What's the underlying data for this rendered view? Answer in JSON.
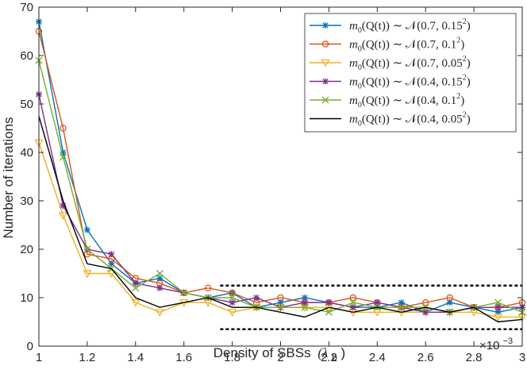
{
  "chart_data": {
    "type": "line",
    "title": "",
    "xlabel": "Density of SBSs",
    "xlabel_symbol": "(λ",
    "xlabel_subscript": "b",
    "xlabel_close": ")",
    "ylabel": "Number of iterations",
    "x_multiplier": "×10",
    "x_multiplier_exp": "−3",
    "xlim": [
      1,
      3
    ],
    "ylim": [
      0,
      70
    ],
    "xticks": [
      1,
      1.2,
      1.4,
      1.6,
      1.8,
      2,
      2.2,
      2.4,
      2.6,
      2.8,
      3
    ],
    "xtick_labels": [
      "1",
      "1.2",
      "1.4",
      "1.6",
      "1.8",
      "2",
      "2.2",
      "2.4",
      "2.6",
      "2.8",
      "3"
    ],
    "yticks": [
      0,
      10,
      20,
      30,
      40,
      50,
      60,
      70
    ],
    "ytick_labels": [
      "0",
      "10",
      "20",
      "30",
      "40",
      "50",
      "60",
      "70"
    ],
    "x": [
      1.0,
      1.1,
      1.2,
      1.3,
      1.4,
      1.5,
      1.6,
      1.7,
      1.8,
      1.9,
      2.0,
      2.1,
      2.2,
      2.3,
      2.4,
      2.5,
      2.6,
      2.7,
      2.8,
      2.9,
      3.0
    ],
    "legend_position": "top-right",
    "series": [
      {
        "name": "m0(Q(t)) ~ N(0.7, 0.15^2)",
        "legend_prefix": "m",
        "legend_sub": "0",
        "legend_mid": "(Q(t)) ∼ 𝒩(0.7, 0.15",
        "legend_sup": "2",
        "legend_end": ")",
        "color": "#0072BD",
        "marker": "asterisk",
        "values": [
          67,
          40,
          24,
          17,
          13,
          14,
          11,
          10,
          11,
          8,
          9,
          10,
          9,
          8,
          8,
          9,
          7,
          9,
          8,
          7,
          8
        ]
      },
      {
        "name": "m0(Q(t)) ~ N(0.7, 0.1^2)",
        "legend_prefix": "m",
        "legend_sub": "0",
        "legend_mid": "(Q(t)) ∼ 𝒩(0.7, 0.1",
        "legend_sup": "2",
        "legend_end": ")",
        "color": "#D95319",
        "marker": "circle",
        "values": [
          65,
          45,
          19,
          18,
          14,
          13,
          11,
          12,
          11,
          9,
          10,
          9,
          9,
          10,
          9,
          8,
          9,
          10,
          8,
          8,
          9
        ]
      },
      {
        "name": "m0(Q(t)) ~ N(0.7, 0.05^2)",
        "legend_prefix": "m",
        "legend_sub": "0",
        "legend_mid": "(Q(t)) ∼ 𝒩(0.7, 0.05",
        "legend_sup": "2",
        "legend_end": ")",
        "color": "#EDB120",
        "marker": "triangle-down",
        "values": [
          42,
          27,
          15,
          15,
          9,
          7,
          9,
          9,
          7,
          8,
          8,
          8,
          8,
          7,
          7,
          7,
          7,
          7,
          7,
          6,
          6
        ]
      },
      {
        "name": "m0(Q(t)) ~ N(0.4, 0.15^2)",
        "legend_prefix": "m",
        "legend_sub": "0",
        "legend_mid": "(Q(t)) ∼ 𝒩(0.4, 0.15",
        "legend_sup": "2",
        "legend_end": ")",
        "color": "#7E2F8E",
        "marker": "asterisk",
        "values": [
          52,
          29,
          20,
          19,
          13,
          12,
          11,
          10,
          9,
          10,
          8,
          9,
          9,
          8,
          9,
          8,
          7,
          7,
          8,
          8,
          8
        ]
      },
      {
        "name": "m0(Q(t)) ~ N(0.4, 0.1^2)",
        "legend_prefix": "m",
        "legend_sub": "0",
        "legend_mid": "(Q(t)) ∼ 𝒩(0.4, 0.1",
        "legend_sup": "2",
        "legend_end": ")",
        "color": "#77AC30",
        "marker": "x",
        "values": [
          59,
          39,
          20,
          16,
          12,
          15,
          11,
          10,
          10,
          8,
          8,
          8,
          7,
          9,
          8,
          8,
          8,
          7,
          8,
          9,
          7
        ]
      },
      {
        "name": "m0(Q(t)) ~ N(0.4, 0.05^2)",
        "legend_prefix": "m",
        "legend_sub": "0",
        "legend_mid": "(Q(t)) ∼ 𝒩(0.4, 0.05",
        "legend_sup": "2",
        "legend_end": ")",
        "color": "#000000",
        "marker": "none",
        "values": [
          47.5,
          30,
          17,
          16,
          10,
          8,
          9,
          10,
          8,
          8,
          7,
          6,
          8,
          7,
          8,
          7,
          8,
          7,
          8,
          5,
          5.5
        ]
      }
    ],
    "annotations": [
      {
        "type": "dashed-hline",
        "y": 12.5,
        "x_range": [
          1.75,
          3
        ]
      },
      {
        "type": "dashed-hline",
        "y": 3.5,
        "x_range": [
          1.75,
          3
        ]
      }
    ]
  }
}
